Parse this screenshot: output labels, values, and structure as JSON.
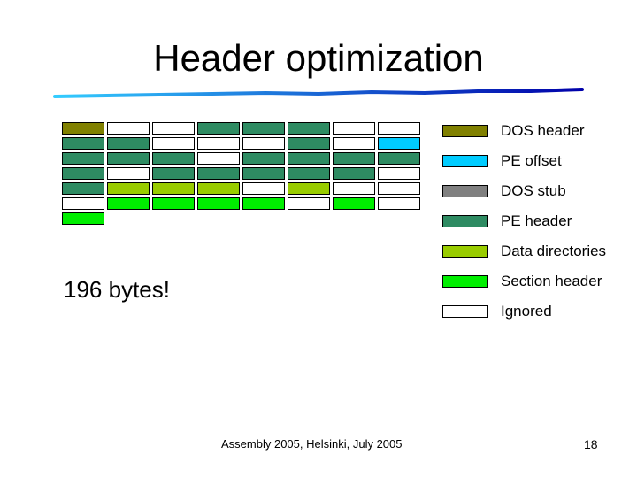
{
  "slide": {
    "title": "Header optimization",
    "callout": "196 bytes!",
    "footer": "Assembly 2005, Helsinki, July 2005",
    "page_number": "18"
  },
  "colors": {
    "dos_header": "#808000",
    "pe_offset": "#00ccff",
    "dos_stub": "#808080",
    "pe_header": "#2e8b62",
    "data_directories": "#99cc00",
    "section_header": "#00ee00",
    "ignored": "#ffffff",
    "rule_light": "#33ccff",
    "rule_dark": "#0000aa"
  },
  "legend": [
    {
      "label": "DOS header",
      "color": "#808000"
    },
    {
      "label": "PE offset",
      "color": "#00ccff"
    },
    {
      "label": "DOS stub",
      "color": "#808080"
    },
    {
      "label": "PE header",
      "color": "#2e8b62"
    },
    {
      "label": "Data directories",
      "color": "#99cc00"
    },
    {
      "label": "Section header",
      "color": "#00ee00"
    },
    {
      "label": "Ignored",
      "color": "#ffffff"
    }
  ],
  "byte_layout": {
    "rows": [
      [
        {
          "top": "dos_header"
        },
        {
          "top": "ignored"
        },
        {
          "top": "ignored"
        },
        {
          "top": "pe_header"
        },
        {
          "top": "pe_header"
        },
        {
          "top": "pe_header"
        },
        {
          "top": "ignored"
        },
        {
          "top": "ignored"
        }
      ],
      [
        {
          "top": "pe_header"
        },
        {
          "top": "pe_header"
        },
        {
          "top": "ignored"
        },
        {
          "top": "ignored"
        },
        {
          "top": "ignored"
        },
        {
          "top": "pe_header"
        },
        {
          "top": "ignored"
        },
        {
          "top": "pe_offset"
        }
      ],
      [
        {
          "top": "pe_header"
        },
        {
          "top": "pe_header"
        },
        {
          "top": "pe_header"
        },
        {
          "top": "ignored"
        },
        {
          "top": "pe_header"
        },
        {
          "top": "pe_header"
        },
        {
          "top": "pe_header"
        },
        {
          "top": "pe_header"
        }
      ],
      [
        {
          "top": "pe_header"
        },
        {
          "top": "ignored"
        },
        {
          "top": "pe_header"
        },
        {
          "top": "pe_header"
        },
        {
          "top": "pe_header"
        },
        {
          "top": "pe_header"
        },
        {
          "top": "pe_header"
        },
        {
          "top": "ignored"
        }
      ],
      [
        {
          "top": "pe_header"
        },
        {
          "top": "data_directories"
        },
        {
          "top": "data_directories"
        },
        {
          "top": "data_directories"
        },
        {
          "top": "ignored"
        },
        {
          "top": "data_directories"
        },
        {
          "top": "ignored"
        },
        {
          "top": "ignored"
        }
      ],
      [
        {
          "top": "ignored"
        },
        {
          "top": "section_header"
        },
        {
          "top": "section_header"
        },
        {
          "top": "section_header"
        },
        {
          "top": "section_header"
        },
        {
          "top": "ignored"
        },
        {
          "top": "section_header"
        },
        {
          "top": "ignored"
        }
      ],
      [
        {
          "top": "section_header"
        }
      ]
    ]
  }
}
